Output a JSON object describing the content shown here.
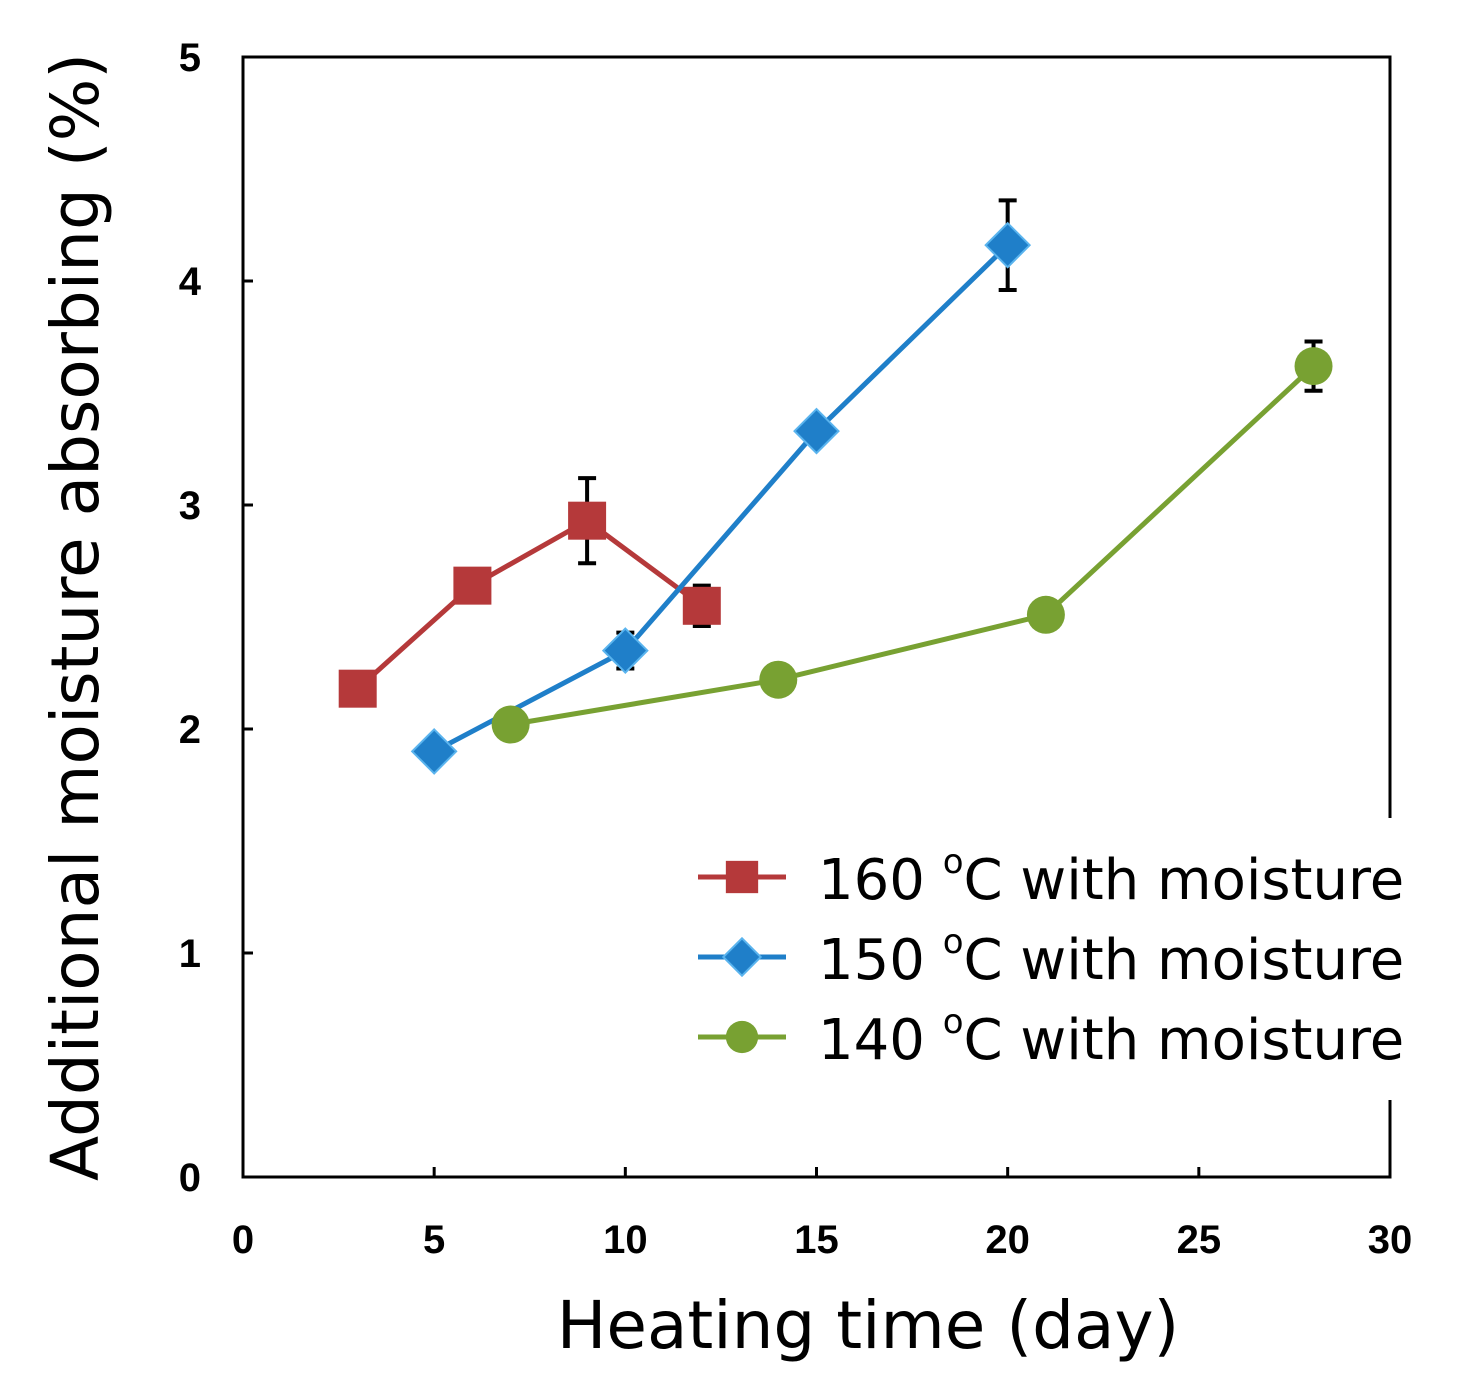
{
  "chart_data": {
    "type": "line",
    "title": "",
    "xlabel": "Heating time (day)",
    "ylabel": "Additional moisture absorbing (%)",
    "xlim": [
      0,
      30
    ],
    "ylim": [
      0,
      5
    ],
    "xticks": [
      0,
      5,
      10,
      15,
      20,
      25,
      30
    ],
    "yticks": [
      0,
      1,
      2,
      3,
      4,
      5
    ],
    "grid": false,
    "legend_position": "bottom-right",
    "series": [
      {
        "name": "160 °C with moisture",
        "label_prefix": "160 ",
        "label_sup": "o",
        "label_suffix": "C with moisture",
        "color": "#b5393a",
        "marker": "square",
        "x": [
          3,
          6,
          9,
          12
        ],
        "y": [
          2.18,
          2.64,
          2.93,
          2.55
        ],
        "err": [
          0,
          0,
          0.19,
          0.09
        ]
      },
      {
        "name": "150 °C with moisture",
        "label_prefix": "150 ",
        "label_sup": "o",
        "label_suffix": "C with moisture",
        "color": "#1f7fc9",
        "marker": "diamond",
        "x": [
          5,
          10,
          15,
          20
        ],
        "y": [
          1.9,
          2.35,
          3.33,
          4.16
        ],
        "err": [
          0,
          0.08,
          0,
          0.2
        ]
      },
      {
        "name": "140 °C with moisture",
        "label_prefix": "140 ",
        "label_sup": "o",
        "label_suffix": "C with moisture",
        "color": "#78a132",
        "marker": "circle",
        "x": [
          7,
          14,
          21,
          28
        ],
        "y": [
          2.02,
          2.22,
          2.51,
          3.62
        ],
        "err": [
          0,
          0,
          0,
          0.11
        ]
      }
    ]
  }
}
